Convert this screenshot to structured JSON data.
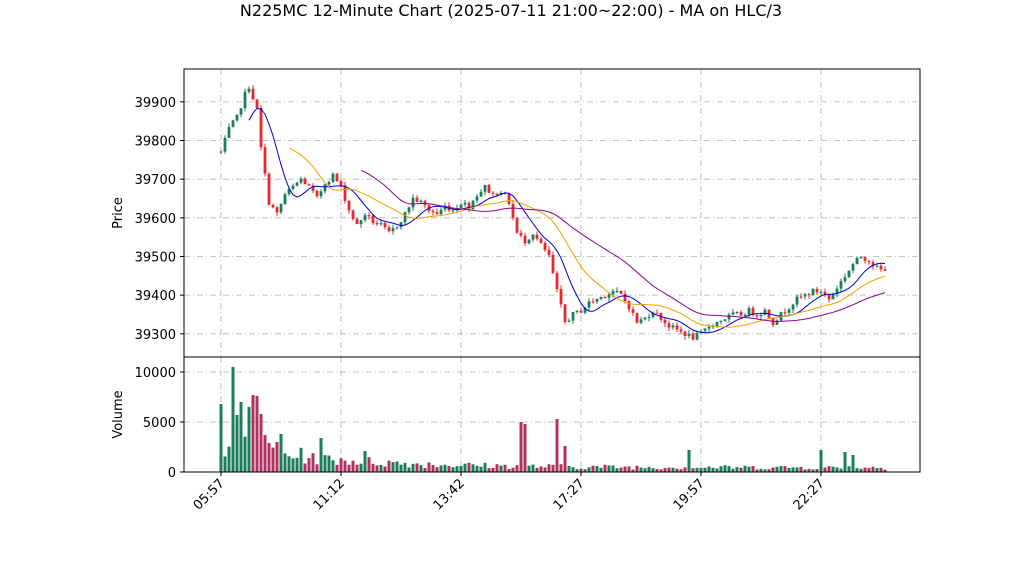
{
  "chart_data": {
    "type": "candlestick",
    "title": "N225MC 12-Minute Chart (2025-07-11 21:00~22:00) - MA on HLC/3",
    "price_panel": {
      "ylabel": "Price",
      "ylim": [
        39240,
        39985
      ],
      "yticks": [
        39300,
        39400,
        39500,
        39600,
        39700,
        39800,
        39900
      ],
      "grid": true
    },
    "volume_panel": {
      "ylabel": "Volume",
      "ylim": [
        0,
        10500
      ],
      "yticks": [
        0,
        5000,
        10000
      ],
      "grid": true
    },
    "xaxis": {
      "tick_labels": [
        "05:57",
        "11:12",
        "13:42",
        "17:27",
        "19:57",
        "22:27"
      ],
      "tick_bar_index": [
        0,
        30,
        60,
        90,
        120,
        150
      ],
      "bar_count": 167
    },
    "colors": {
      "up": "#1a7d5e",
      "down": "#e8282d",
      "ma_short": "#0000cc",
      "ma_mid": "#f0a000",
      "ma_long": "#8b008b",
      "volume_up": "#1a7d5e",
      "volume_down": "#b03060"
    },
    "price_anchors": [
      [
        0,
        39770
      ],
      [
        2,
        39830
      ],
      [
        4,
        39860
      ],
      [
        6,
        39920
      ],
      [
        7,
        39940
      ],
      [
        9,
        39880
      ],
      [
        10,
        39780
      ],
      [
        12,
        39640
      ],
      [
        14,
        39610
      ],
      [
        16,
        39660
      ],
      [
        18,
        39680
      ],
      [
        20,
        39700
      ],
      [
        22,
        39680
      ],
      [
        24,
        39650
      ],
      [
        26,
        39690
      ],
      [
        28,
        39710
      ],
      [
        30,
        39680
      ],
      [
        32,
        39620
      ],
      [
        34,
        39580
      ],
      [
        36,
        39610
      ],
      [
        38,
        39590
      ],
      [
        40,
        39580
      ],
      [
        42,
        39560
      ],
      [
        44,
        39580
      ],
      [
        46,
        39610
      ],
      [
        48,
        39650
      ],
      [
        50,
        39640
      ],
      [
        52,
        39620
      ],
      [
        54,
        39610
      ],
      [
        56,
        39630
      ],
      [
        58,
        39620
      ],
      [
        60,
        39640
      ],
      [
        62,
        39630
      ],
      [
        64,
        39660
      ],
      [
        66,
        39680
      ],
      [
        68,
        39660
      ],
      [
        70,
        39670
      ],
      [
        72,
        39640
      ],
      [
        74,
        39560
      ],
      [
        76,
        39540
      ],
      [
        78,
        39560
      ],
      [
        80,
        39530
      ],
      [
        82,
        39500
      ],
      [
        84,
        39410
      ],
      [
        86,
        39330
      ],
      [
        88,
        39350
      ],
      [
        90,
        39360
      ],
      [
        92,
        39380
      ],
      [
        94,
        39390
      ],
      [
        96,
        39400
      ],
      [
        98,
        39410
      ],
      [
        100,
        39400
      ],
      [
        102,
        39370
      ],
      [
        104,
        39330
      ],
      [
        106,
        39340
      ],
      [
        108,
        39360
      ],
      [
        110,
        39340
      ],
      [
        112,
        39320
      ],
      [
        114,
        39310
      ],
      [
        116,
        39300
      ],
      [
        118,
        39290
      ],
      [
        120,
        39300
      ],
      [
        122,
        39320
      ],
      [
        124,
        39330
      ],
      [
        126,
        39340
      ],
      [
        128,
        39350
      ],
      [
        130,
        39350
      ],
      [
        132,
        39360
      ],
      [
        134,
        39350
      ],
      [
        136,
        39360
      ],
      [
        138,
        39330
      ],
      [
        140,
        39350
      ],
      [
        142,
        39370
      ],
      [
        144,
        39390
      ],
      [
        146,
        39400
      ],
      [
        148,
        39410
      ],
      [
        150,
        39410
      ],
      [
        152,
        39390
      ],
      [
        154,
        39420
      ],
      [
        156,
        39450
      ],
      [
        158,
        39480
      ],
      [
        160,
        39500
      ],
      [
        162,
        39490
      ],
      [
        164,
        39470
      ],
      [
        166,
        39460
      ]
    ],
    "volume_peaks": [
      [
        0,
        6800
      ],
      [
        3,
        10500
      ],
      [
        4,
        5700
      ],
      [
        5,
        7000
      ],
      [
        7,
        6500
      ],
      [
        8,
        7700
      ],
      [
        9,
        7600
      ],
      [
        10,
        5800
      ],
      [
        11,
        3700
      ],
      [
        14,
        3000
      ],
      [
        15,
        3800
      ],
      [
        25,
        3400
      ],
      [
        36,
        2100
      ],
      [
        75,
        5000
      ],
      [
        76,
        4800
      ],
      [
        84,
        5300
      ],
      [
        86,
        2600
      ],
      [
        117,
        2200
      ],
      [
        150,
        2200
      ],
      [
        156,
        2000
      ],
      [
        158,
        1700
      ]
    ]
  }
}
